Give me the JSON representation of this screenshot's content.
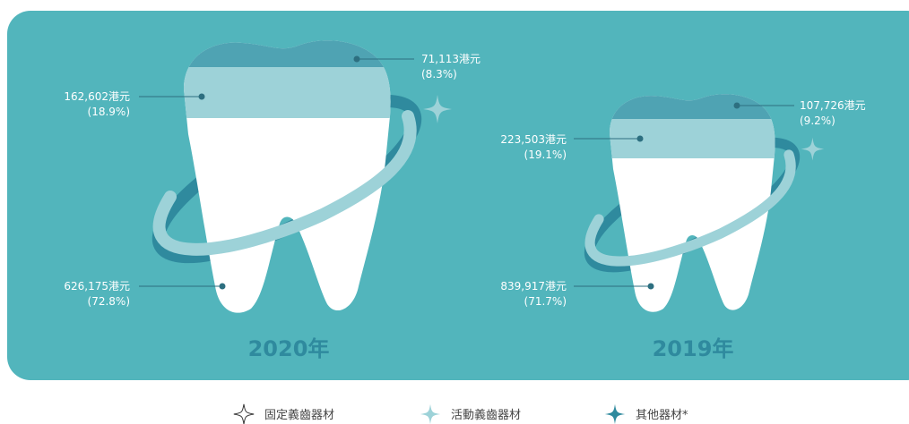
{
  "panels": [
    {
      "year": "2020年",
      "items": [
        {
          "amount": "626,175港元",
          "percent": "(72.8%)"
        },
        {
          "amount": "162,602港元",
          "percent": "(18.9%)"
        },
        {
          "amount": "71,113港元",
          "percent": "(8.3%)"
        }
      ]
    },
    {
      "year": "2019年",
      "items": [
        {
          "amount": "839,917港元",
          "percent": "(71.7%)"
        },
        {
          "amount": "223,503港元",
          "percent": "(19.1%)"
        },
        {
          "amount": "107,726港元",
          "percent": "(9.2%)"
        }
      ]
    }
  ],
  "legend": [
    "固定義齒器材",
    "活動義齒器材",
    "其他器材*"
  ]
}
